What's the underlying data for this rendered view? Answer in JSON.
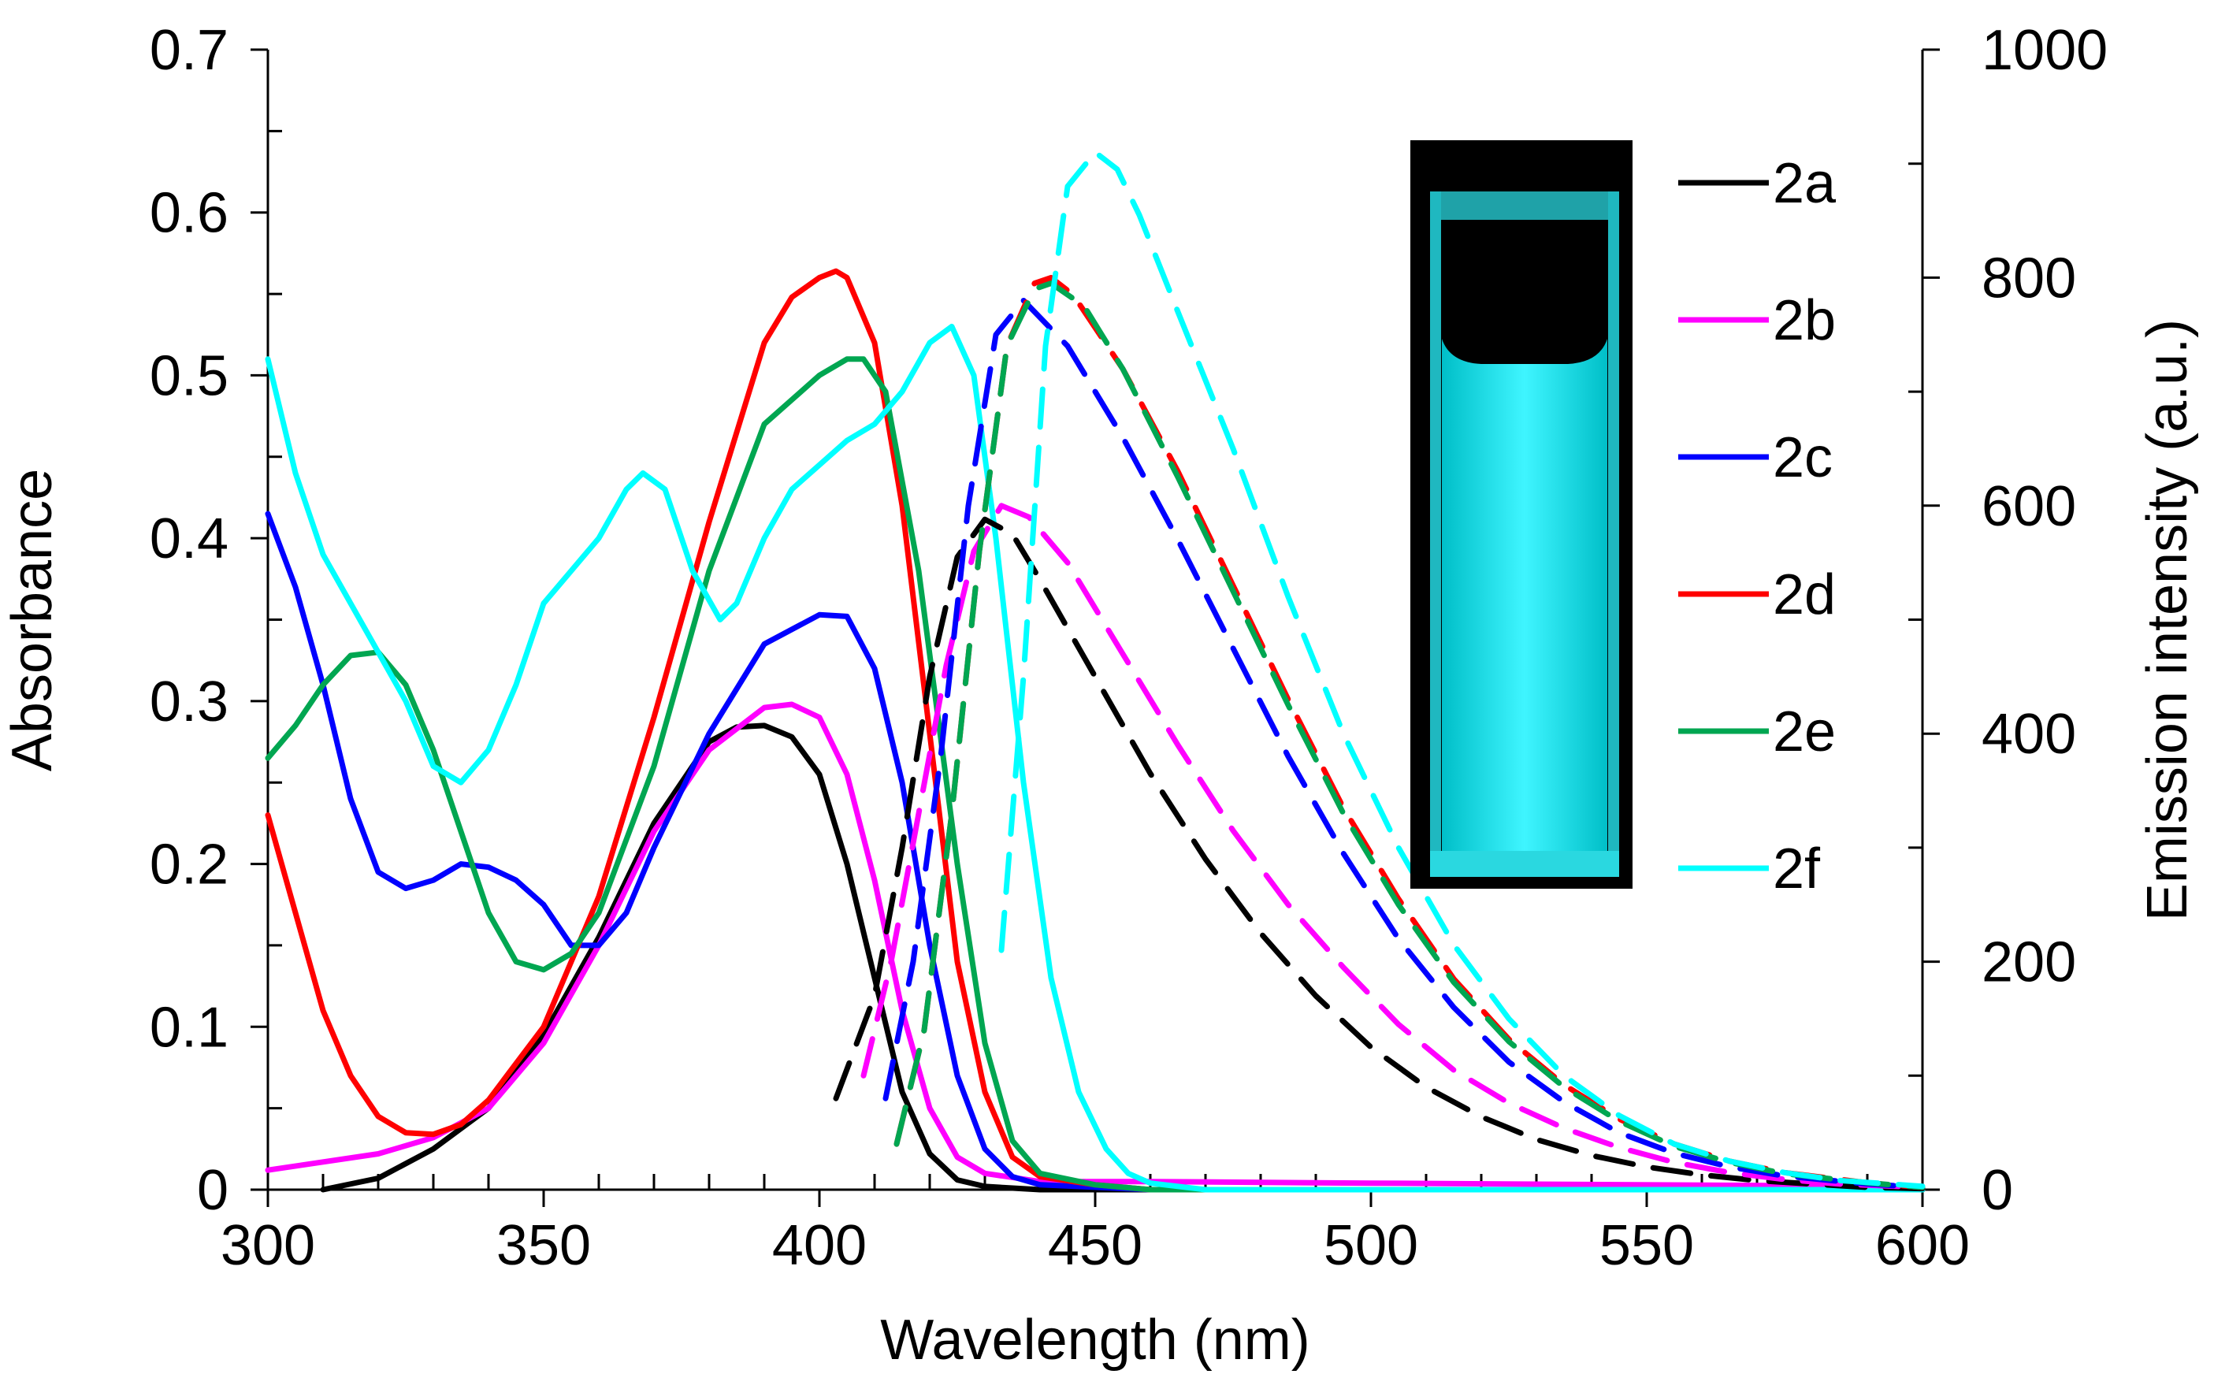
{
  "chart_data": {
    "type": "line",
    "xlabel": "Wavelength (nm)",
    "ylabel": "Absorbance",
    "y2label": "Emission intensity (a.u.)",
    "xlim": [
      300,
      600
    ],
    "ylim": [
      0,
      0.7
    ],
    "y2lim": [
      0,
      1000
    ],
    "xticks": [
      "300",
      "350",
      "400",
      "450",
      "500",
      "550",
      "600"
    ],
    "yticks": [
      "0",
      "0.1",
      "0.2",
      "0.3",
      "0.4",
      "0.5",
      "0.6",
      "0.7"
    ],
    "y2ticks": [
      "0",
      "200",
      "400",
      "600",
      "800",
      "1000"
    ],
    "inset": "cuvette photo showing cyan fluorescence",
    "series": [
      {
        "name": "2a",
        "color": "#000000",
        "absorbance": {
          "x": [
            310,
            320,
            330,
            340,
            350,
            360,
            370,
            380,
            385,
            390,
            395,
            400,
            405,
            410,
            415,
            420,
            425,
            430,
            440,
            460,
            500,
            600
          ],
          "y": [
            0.0,
            0.007,
            0.025,
            0.05,
            0.095,
            0.155,
            0.225,
            0.275,
            0.284,
            0.285,
            0.278,
            0.255,
            0.2,
            0.13,
            0.06,
            0.022,
            0.006,
            0.002,
            0.0,
            0.0,
            0.0,
            0.0
          ]
        },
        "emission": {
          "x": [
            403,
            410,
            415,
            420,
            425,
            430,
            435,
            440,
            450,
            460,
            470,
            480,
            490,
            500,
            510,
            520,
            530,
            540,
            550,
            560,
            570,
            580,
            590,
            600
          ],
          "y": [
            80,
            170,
            300,
            450,
            555,
            588,
            575,
            535,
            450,
            365,
            290,
            225,
            170,
            125,
            90,
            64,
            44,
            30,
            20,
            13,
            8,
            5,
            2,
            1
          ]
        }
      },
      {
        "name": "2b",
        "color": "#ff00ff",
        "absorbance": {
          "x": [
            300,
            320,
            330,
            340,
            350,
            360,
            370,
            380,
            390,
            395,
            400,
            405,
            410,
            415,
            420,
            425,
            430,
            440,
            460,
            500,
            600
          ],
          "y": [
            0.012,
            0.022,
            0.032,
            0.05,
            0.09,
            0.15,
            0.22,
            0.27,
            0.296,
            0.298,
            0.29,
            0.255,
            0.19,
            0.11,
            0.05,
            0.02,
            0.01,
            0.005,
            0.005,
            0.004,
            0.002
          ]
        },
        "emission": {
          "x": [
            408,
            413,
            418,
            423,
            428,
            433,
            438,
            445,
            455,
            465,
            475,
            485,
            495,
            505,
            515,
            525,
            535,
            545,
            555,
            565,
            575,
            585,
            600
          ],
          "y": [
            100,
            200,
            330,
            460,
            560,
            600,
            590,
            550,
            470,
            390,
            315,
            250,
            195,
            145,
            105,
            76,
            54,
            37,
            24,
            15,
            9,
            5,
            2
          ]
        }
      },
      {
        "name": "2c",
        "color": "#0000ff",
        "absorbance": {
          "x": [
            300,
            305,
            310,
            315,
            320,
            325,
            330,
            335,
            340,
            345,
            350,
            355,
            360,
            365,
            370,
            380,
            390,
            400,
            405,
            410,
            415,
            420,
            425,
            430,
            435,
            440,
            460,
            600
          ],
          "y": [
            0.415,
            0.37,
            0.31,
            0.24,
            0.195,
            0.185,
            0.19,
            0.2,
            0.198,
            0.19,
            0.175,
            0.15,
            0.15,
            0.17,
            0.21,
            0.28,
            0.335,
            0.353,
            0.352,
            0.32,
            0.25,
            0.15,
            0.07,
            0.025,
            0.008,
            0.003,
            0.0,
            0.0
          ]
        },
        "emission": {
          "x": [
            412,
            417,
            422,
            427,
            432,
            437,
            445,
            455,
            465,
            475,
            485,
            495,
            505,
            515,
            525,
            535,
            545,
            555,
            565,
            575,
            590,
            600
          ],
          "y": [
            80,
            200,
            380,
            600,
            750,
            780,
            740,
            660,
            570,
            475,
            380,
            295,
            220,
            160,
            112,
            77,
            50,
            32,
            20,
            12,
            5,
            2
          ]
        }
      },
      {
        "name": "2d",
        "color": "#ff0000",
        "absorbance": {
          "x": [
            300,
            305,
            310,
            315,
            320,
            325,
            330,
            335,
            340,
            350,
            360,
            370,
            380,
            390,
            395,
            400,
            403,
            405,
            410,
            415,
            420,
            425,
            430,
            435,
            440,
            450,
            460,
            600
          ],
          "y": [
            0.23,
            0.17,
            0.11,
            0.07,
            0.045,
            0.035,
            0.034,
            0.04,
            0.055,
            0.1,
            0.18,
            0.29,
            0.41,
            0.52,
            0.548,
            0.56,
            0.564,
            0.56,
            0.52,
            0.42,
            0.28,
            0.14,
            0.06,
            0.02,
            0.008,
            0.003,
            0.0,
            0.0
          ]
        },
        "emission": {
          "x": [
            414,
            419,
            424,
            429,
            434,
            439,
            442,
            446,
            455,
            465,
            475,
            485,
            495,
            505,
            515,
            525,
            535,
            545,
            555,
            565,
            575,
            590,
            600
          ],
          "y": [
            40,
            140,
            330,
            560,
            740,
            795,
            800,
            785,
            720,
            630,
            530,
            430,
            335,
            255,
            185,
            132,
            92,
            62,
            40,
            25,
            15,
            6,
            2
          ]
        }
      },
      {
        "name": "2e",
        "color": "#00a651",
        "absorbance": {
          "x": [
            300,
            305,
            310,
            315,
            320,
            325,
            330,
            335,
            340,
            345,
            350,
            355,
            360,
            370,
            380,
            390,
            400,
            405,
            408,
            412,
            418,
            425,
            430,
            435,
            440,
            450,
            460,
            600
          ],
          "y": [
            0.265,
            0.285,
            0.31,
            0.328,
            0.33,
            0.31,
            0.27,
            0.22,
            0.17,
            0.14,
            0.135,
            0.145,
            0.17,
            0.26,
            0.38,
            0.47,
            0.5,
            0.51,
            0.51,
            0.49,
            0.38,
            0.2,
            0.09,
            0.03,
            0.01,
            0.003,
            0.0,
            0.0
          ]
        },
        "emission": {
          "x": [
            414,
            419,
            424,
            429,
            434,
            439,
            442,
            448,
            455,
            465,
            475,
            485,
            495,
            505,
            515,
            525,
            535,
            545,
            555,
            565,
            575,
            590,
            600
          ],
          "y": [
            40,
            140,
            330,
            560,
            740,
            790,
            795,
            775,
            720,
            625,
            525,
            425,
            330,
            250,
            182,
            130,
            90,
            60,
            38,
            24,
            14,
            6,
            2
          ]
        }
      },
      {
        "name": "2f",
        "color": "#00ffff",
        "absorbance": {
          "x": [
            300,
            305,
            310,
            315,
            320,
            325,
            330,
            335,
            340,
            345,
            350,
            355,
            360,
            365,
            368,
            372,
            377,
            382,
            385,
            390,
            395,
            400,
            405,
            410,
            415,
            420,
            424,
            428,
            432,
            437,
            442,
            447,
            452,
            456,
            460,
            470,
            600
          ],
          "y": [
            0.51,
            0.44,
            0.39,
            0.36,
            0.33,
            0.3,
            0.26,
            0.25,
            0.27,
            0.31,
            0.36,
            0.38,
            0.4,
            0.43,
            0.44,
            0.43,
            0.38,
            0.35,
            0.36,
            0.4,
            0.43,
            0.445,
            0.46,
            0.47,
            0.49,
            0.52,
            0.53,
            0.5,
            0.4,
            0.25,
            0.13,
            0.06,
            0.025,
            0.01,
            0.004,
            0.0,
            0.0
          ]
        },
        "emission": {
          "x": [
            433,
            437,
            441,
            445,
            450,
            454,
            458,
            465,
            475,
            485,
            495,
            505,
            515,
            525,
            535,
            545,
            555,
            565,
            575,
            585,
            600
          ],
          "y": [
            210,
            450,
            740,
            880,
            910,
            895,
            855,
            770,
            650,
            520,
            400,
            300,
            215,
            150,
            100,
            65,
            40,
            25,
            15,
            8,
            3
          ]
        }
      }
    ]
  }
}
